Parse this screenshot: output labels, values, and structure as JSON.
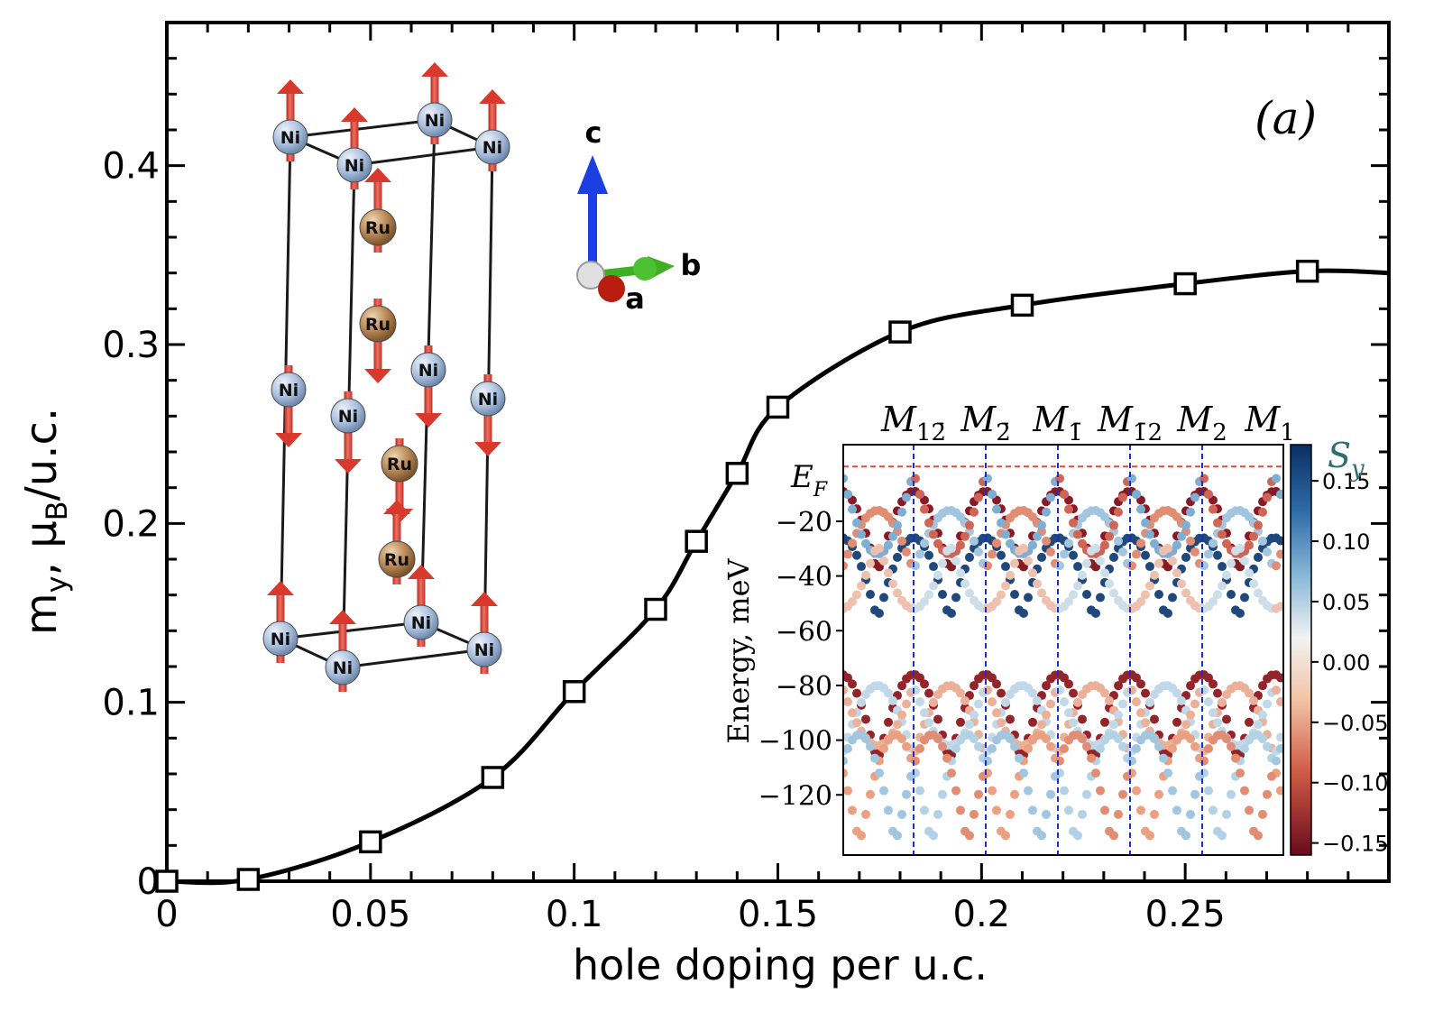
{
  "chart_data": [
    {
      "type": "line",
      "panel_label": "(a)",
      "xlabel": "hole doping per u.c.",
      "ylabel": "m",
      "ylabel_sub_y": "y",
      "ylabel_sep": ", ",
      "ylabel_mu": "μ",
      "ylabel_sub_B": "B",
      "ylabel_tail": "/u.c.",
      "xlim": [
        0,
        0.3
      ],
      "ylim": [
        0,
        0.48
      ],
      "xticks": [
        0,
        0.05,
        0.1,
        0.15,
        0.2,
        0.25
      ],
      "xtick_labels": [
        "0",
        "0.05",
        "0.1",
        "0.15",
        "0.2",
        "0.25"
      ],
      "yticks": [
        0,
        0.1,
        0.2,
        0.3,
        0.4
      ],
      "ytick_labels": [
        "0",
        "0.1",
        "0.2",
        "0.3",
        "0.4"
      ],
      "x": [
        0,
        0.02,
        0.05,
        0.08,
        0.1,
        0.12,
        0.13,
        0.14,
        0.15,
        0.18,
        0.21,
        0.25,
        0.28
      ],
      "y": [
        0,
        0.001,
        0.022,
        0.058,
        0.106,
        0.152,
        0.19,
        0.228,
        0.265,
        0.307,
        0.322,
        0.334,
        0.341
      ],
      "line_end": [
        0.3,
        0.34
      ],
      "marker": "open-square",
      "color": "#000000"
    },
    {
      "type": "scatter",
      "role": "inset band structure",
      "ylabel": "Energy, meV",
      "ylim": [
        -142,
        8
      ],
      "yticks": [
        -20,
        -40,
        -60,
        -80,
        -100,
        -120
      ],
      "ytick_labels": [
        "−20",
        "−40",
        "−60",
        "−80",
        "−100",
        "−120"
      ],
      "fermi_label": "E",
      "fermi_label_sub": "F",
      "fermi_energy": 0,
      "k_labels": [
        {
          "base": "M",
          "sub": "12̄"
        },
        {
          "base": "M",
          "sub": "2̄"
        },
        {
          "base": "M",
          "sub": "1̄"
        },
        {
          "base": "M",
          "sub": "1̄2"
        },
        {
          "base": "M",
          "sub": "2"
        },
        {
          "base": "M",
          "sub": "1"
        }
      ],
      "colorbar_label": "S",
      "colorbar_label_sub": "y",
      "colorbar_range": [
        -0.16,
        0.18
      ],
      "colorbar_ticks": [
        0.15,
        0.1,
        0.05,
        0.0,
        -0.05,
        -0.1,
        -0.15
      ],
      "colorbar_tick_labels": [
        "0.15",
        "0.10",
        "0.05",
        "0.00",
        "−0.05",
        "−0.10",
        "−0.15"
      ],
      "colormap": "RdBu",
      "bands_schematic": [
        {
          "amp": 30,
          "base": -9,
          "dir": 1,
          "phase": 0.0,
          "spin": -0.14,
          "alt": false
        },
        {
          "amp": 30,
          "base": -26,
          "dir": 1,
          "phase": 0.0,
          "spin": 0.16,
          "alt": false
        },
        {
          "amp": 22,
          "base": -16,
          "dir": 1,
          "phase": 0.5,
          "spin": -0.06,
          "alt": true
        },
        {
          "amp": 30,
          "base": -32,
          "dir": -1,
          "phase": 0.5,
          "spin": 0.08,
          "alt": true
        },
        {
          "amp": 24,
          "base": -52,
          "dir": -1,
          "phase": 0.0,
          "spin": -0.03,
          "alt": true
        },
        {
          "amp": 32,
          "base": -76,
          "dir": 1,
          "phase": 0.0,
          "spin": -0.13,
          "alt": false
        },
        {
          "amp": 26,
          "base": -80,
          "dir": 1,
          "phase": 0.5,
          "spin": 0.04,
          "alt": true
        },
        {
          "amp": 22,
          "base": -102,
          "dir": -1,
          "phase": 0.5,
          "spin": -0.04,
          "alt": true
        },
        {
          "amp": 40,
          "base": -98,
          "dir": 1,
          "phase": 0.25,
          "spin": -0.05,
          "alt": true
        },
        {
          "amp": 40,
          "base": -98,
          "dir": 1,
          "phase": 0.75,
          "spin": 0.06,
          "alt": true
        }
      ]
    }
  ],
  "crystal": {
    "axes": {
      "c": "c",
      "b": "b",
      "a": "a"
    },
    "ni_atoms": [
      {
        "id": "ni1",
        "x": 322,
        "y": 152,
        "spin": "up",
        "label": "Ni"
      },
      {
        "id": "ni2",
        "x": 393,
        "y": 183,
        "spin": "up",
        "label": "Ni"
      },
      {
        "id": "ni3",
        "x": 482,
        "y": 133,
        "spin": "up",
        "label": "Ni"
      },
      {
        "id": "ni4",
        "x": 546,
        "y": 163,
        "spin": "up",
        "label": "Ni"
      },
      {
        "id": "ni5",
        "x": 320,
        "y": 432,
        "spin": "down",
        "label": "Ni"
      },
      {
        "id": "ni6",
        "x": 386,
        "y": 461,
        "spin": "down",
        "label": "Ni"
      },
      {
        "id": "ni7",
        "x": 475,
        "y": 410,
        "spin": "down",
        "label": "Ni"
      },
      {
        "id": "ni8",
        "x": 541,
        "y": 442,
        "spin": "down",
        "label": "Ni"
      },
      {
        "id": "ni9",
        "x": 311,
        "y": 708,
        "spin": "up",
        "label": "Ni"
      },
      {
        "id": "ni10",
        "x": 380,
        "y": 740,
        "spin": "up",
        "label": "Ni"
      },
      {
        "id": "ni11",
        "x": 467,
        "y": 690,
        "spin": "up",
        "label": "Ni"
      },
      {
        "id": "ni12",
        "x": 537,
        "y": 720,
        "spin": "up",
        "label": "Ni"
      }
    ],
    "ru_atoms": [
      {
        "id": "ru1",
        "x": 419,
        "y": 252,
        "spin": "up",
        "label": "Ru"
      },
      {
        "id": "ru2",
        "x": 419,
        "y": 359,
        "spin": "down",
        "label": "Ru"
      },
      {
        "id": "ru3",
        "x": 443,
        "y": 514,
        "spin": "down",
        "label": "Ru"
      },
      {
        "id": "ru4",
        "x": 440,
        "y": 620,
        "spin": "up",
        "label": "Ru"
      }
    ]
  }
}
